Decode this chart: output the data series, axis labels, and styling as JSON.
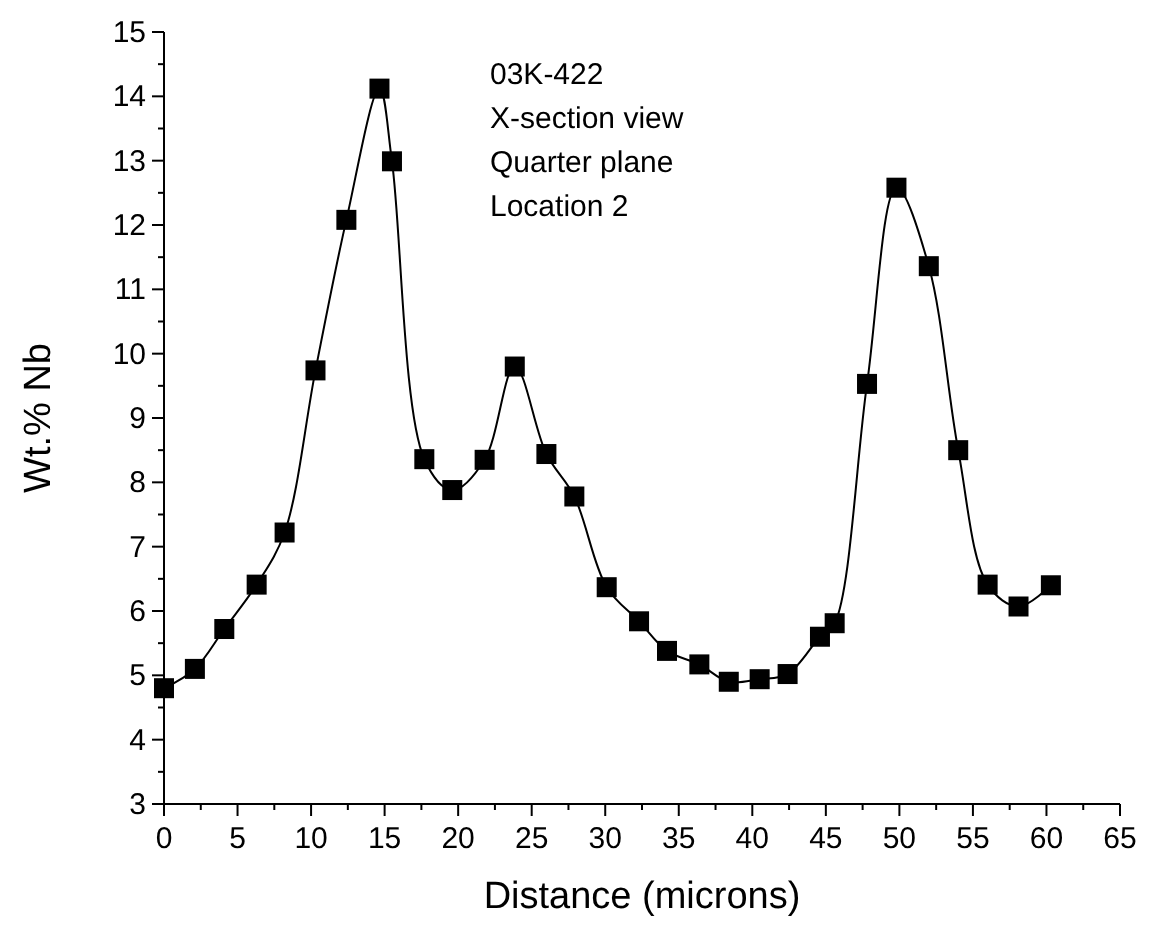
{
  "chart_data": {
    "type": "line",
    "xlabel": "Distance (microns)",
    "ylabel": "Wt.% Nb",
    "annotations": [
      "03K-422",
      "X-section view",
      "Quarter plane",
      "Location 2"
    ],
    "xlim": [
      0,
      65
    ],
    "xticks": [
      0,
      5,
      10,
      15,
      20,
      25,
      30,
      35,
      40,
      45,
      50,
      55,
      60,
      65
    ],
    "ylim": [
      3,
      15
    ],
    "yticks": [
      3,
      4,
      5,
      6,
      7,
      8,
      9,
      10,
      11,
      12,
      13,
      14,
      15
    ],
    "grid": false,
    "marker": "square",
    "line_style": "solid",
    "series": [
      {
        "color": "#000000",
        "x": [
          0,
          2.1,
          4.1,
          6.3,
          8.2,
          10.3,
          12.4,
          14.65,
          15.5,
          17.7,
          19.6,
          21.8,
          23.85,
          26.0,
          27.9,
          30.1,
          32.3,
          34.2,
          36.4,
          38.4,
          40.5,
          42.4,
          44.6,
          45.6,
          47.8,
          49.8,
          52.0,
          54.0,
          56.0,
          58.1,
          60.3
        ],
        "values": [
          4.8,
          5.1,
          5.72,
          6.41,
          7.22,
          9.74,
          12.08,
          14.12,
          12.99,
          8.36,
          7.88,
          8.35,
          9.8,
          8.44,
          7.78,
          6.37,
          5.84,
          5.38,
          5.17,
          4.9,
          4.94,
          5.02,
          5.6,
          5.81,
          9.53,
          12.58,
          11.36,
          8.5,
          6.41,
          6.07,
          6.4
        ]
      }
    ]
  }
}
